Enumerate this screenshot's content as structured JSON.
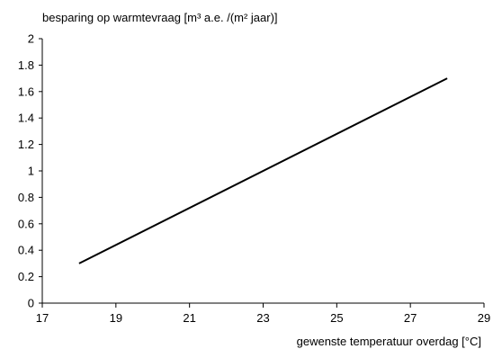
{
  "chart_data": {
    "type": "line",
    "ylabel": "besparing op warmtevraag [m³ a.e. /(m² jaar)]",
    "xlabel": "gewenste temperatuur overdag [°C]",
    "xlim": [
      17,
      29
    ],
    "ylim": [
      0,
      2
    ],
    "x_ticks": [
      "17",
      "19",
      "21",
      "23",
      "25",
      "27",
      "29"
    ],
    "y_ticks": [
      "0",
      "0.2",
      "0.4",
      "0.6",
      "0.8",
      "1",
      "1.2",
      "1.4",
      "1.6",
      "1.8",
      "2"
    ],
    "grid": false,
    "legend": "none",
    "series": [
      {
        "x": [
          18,
          28
        ],
        "y": [
          0.3,
          1.7
        ],
        "color": "#000000"
      }
    ]
  }
}
